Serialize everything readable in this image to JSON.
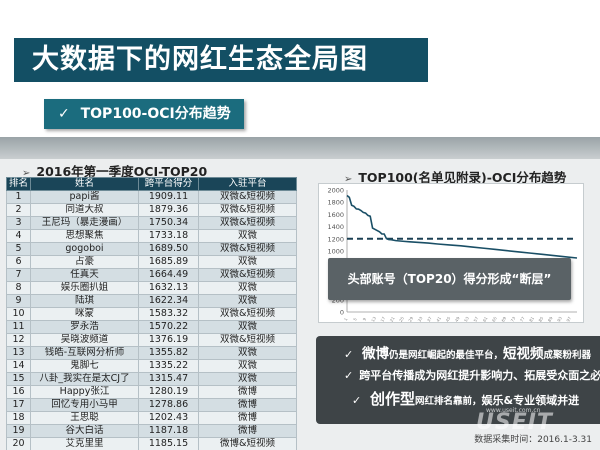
{
  "page": {
    "title": "大数据下的网红生态全局图",
    "subtitle": "TOP100-OCI分布趋势",
    "subtitle_check": "✓"
  },
  "left_section": {
    "heading": "2016年第一季度OCI-TOP20",
    "columns": [
      "排名",
      "姓名",
      "跨平台得分",
      "入驻平台"
    ],
    "rows": [
      [
        "1",
        "papi酱",
        "1909.11",
        "双微&短视频"
      ],
      [
        "2",
        "同道大叔",
        "1879.36",
        "双微&短视频"
      ],
      [
        "3",
        "王尼玛（暴走漫画）",
        "1750.34",
        "双微&短视频"
      ],
      [
        "4",
        "思想聚焦",
        "1733.18",
        "双微"
      ],
      [
        "5",
        "gogoboi",
        "1689.50",
        "双微&短视频"
      ],
      [
        "6",
        "占豪",
        "1685.89",
        "双微"
      ],
      [
        "7",
        "任真天",
        "1664.49",
        "双微&短视频"
      ],
      [
        "8",
        "娱乐圈扒姐",
        "1632.13",
        "双微"
      ],
      [
        "9",
        "陆琪",
        "1622.34",
        "双微"
      ],
      [
        "10",
        "咪蒙",
        "1583.32",
        "双微&短视频"
      ],
      [
        "11",
        "罗永浩",
        "1570.22",
        "双微"
      ],
      [
        "12",
        "吴晓波频道",
        "1376.19",
        "双微&短视频"
      ],
      [
        "13",
        "钱皓-互联网分析师",
        "1355.82",
        "双微"
      ],
      [
        "14",
        "鬼脚七",
        "1335.22",
        "双微"
      ],
      [
        "15",
        "八卦_我实在是太CJ了",
        "1315.47",
        "双微"
      ],
      [
        "16",
        "Happy张江",
        "1280.19",
        "微博"
      ],
      [
        "17",
        "回忆专用小马甲",
        "1278.86",
        "微博"
      ],
      [
        "18",
        "王思聪",
        "1202.43",
        "微博"
      ],
      [
        "19",
        "谷大白话",
        "1187.18",
        "微博"
      ],
      [
        "20",
        "艾克里里",
        "1185.15",
        "微博&短视频"
      ]
    ]
  },
  "right_section": {
    "heading": "TOP100(名单见附录)-OCI分布趋势",
    "callout": "头部账号（TOP20）得分形成“断层”"
  },
  "chart_data": {
    "type": "line",
    "title": "TOP100(名单见附录)-OCI分布趋势",
    "ylim": [
      0,
      2000
    ],
    "yticks": [
      0,
      200,
      400,
      600,
      800,
      1000,
      1200,
      1400,
      1600,
      1800,
      2000
    ],
    "x": [
      1,
      2,
      3,
      4,
      5,
      6,
      7,
      8,
      9,
      10,
      11,
      12,
      13,
      14,
      15,
      16,
      17,
      18,
      19,
      20,
      22,
      25,
      28,
      32,
      36,
      40,
      45,
      50,
      55,
      60,
      65,
      70,
      75,
      80,
      85,
      90,
      95,
      100
    ],
    "series": [
      {
        "values": [
          1909,
          1879,
          1750,
          1733,
          1690,
          1686,
          1664,
          1632,
          1622,
          1583,
          1570,
          1376,
          1356,
          1335,
          1315,
          1280,
          1279,
          1202,
          1187,
          1185,
          1170,
          1160,
          1150,
          1140,
          1130,
          1115,
          1100,
          1085,
          1065,
          1045,
          1025,
          1005,
          985,
          965,
          945,
          925,
          905,
          885
        ]
      }
    ],
    "reference_line": {
      "y": 1200,
      "style": "dashed"
    },
    "colors": {
      "line": "#1a4f66",
      "reference": "#1a3f52"
    }
  },
  "bullets": [
    {
      "check": "✓",
      "big": "微博",
      "small": "仍是网红崛起的最佳平台，",
      "big2": "短视频",
      "small2": "成聚粉利器"
    },
    {
      "check": "✓",
      "mid": "跨平台传播成为网红提升影响力、拓展受众面之必要"
    },
    {
      "check": "✓",
      "big": "创作型",
      "small": "网红排名靠前，",
      "mid": "娱乐&专业领域并进"
    }
  ],
  "footer": {
    "source": "数据采集时间：2016.1-3.31",
    "watermark": "USEIT",
    "watermark_small": "www.useit.com.cn"
  },
  "colors": {
    "title_bg": "#134f64",
    "subtitle_bg": "#1b6c7e",
    "table_header": "#1a4558",
    "bullet_bg": "#3e4447",
    "callout_bg": "#5a6266"
  }
}
